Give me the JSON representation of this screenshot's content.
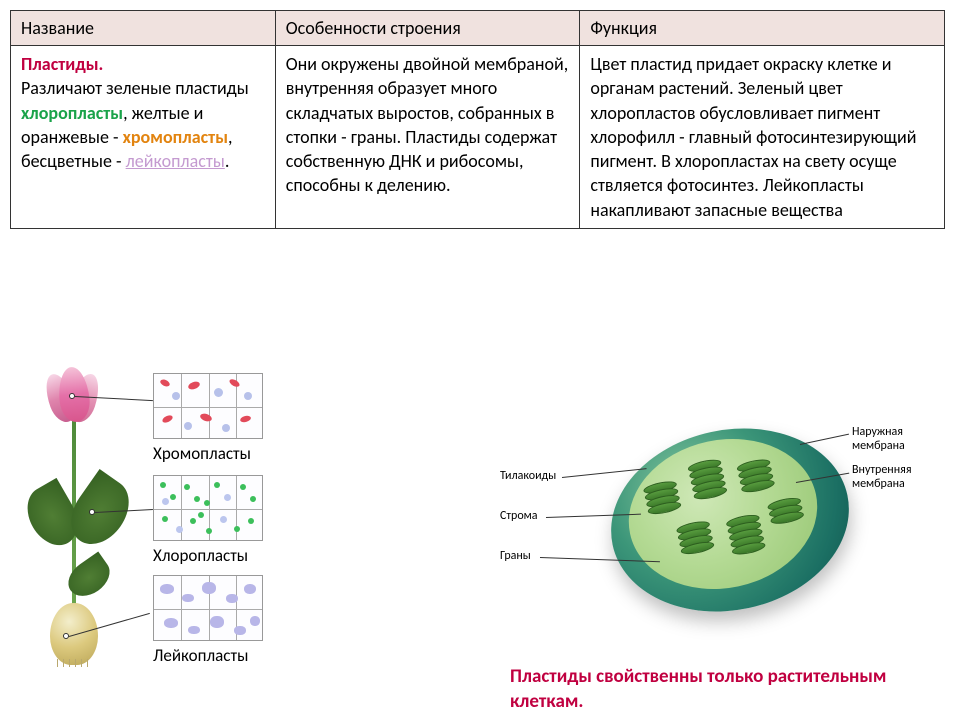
{
  "table": {
    "headers": [
      "Название",
      "Особенности строения",
      "Функция"
    ],
    "col1_parts": {
      "plastidy": "Пластиды.",
      "line2a": "Различают зеленые",
      "line2b": "пластиды ",
      "chloroplasts": "хлоропласты",
      "line3": ", желтые и оранжевые - ",
      "chromoplasts": "хромопласты",
      "line4": ", бесцветные - ",
      "leucoplasts": "лейкопласты",
      "period": "."
    },
    "col2": "Они окружены двойной мембраной, внутренняя образует много складчатых выростов, собранных в стопки - граны. Пластиды содержат собственную ДНК и рибосомы,  способны к делению.",
    "col3": "Цвет пластид придает окраску клетке и органам растений. Зеленый цвет хлоропластов обусловливает пигмент хлорофилл - главный фотосинтезирующий пигмент. В хлоропластах на свету осуще ствляется фотосинтез. Лейкопласты накапливают запасные вещества"
  },
  "plant_labels": {
    "chromoplasts": "Хромопласты",
    "chloroplasts": "Хлоропласты",
    "leucoplasts": "Лейкопласты"
  },
  "chloro_labels": {
    "thylakoids": "Тилакоиды",
    "stroma": "Строма",
    "grana": "Граны",
    "outer_membrane": "Наружная мембрана",
    "inner_membrane": "Внутренняя мембрана"
  },
  "footer": "Пластиды  свойственны только растительным клеткам.",
  "colors": {
    "header_bg": "#f0e2df",
    "plastidy": "#c00040",
    "chloroplasts": "#1aa34a",
    "chromoplasts": "#e28410",
    "leucoplasts": "#c49ad0",
    "footer": "#c00040",
    "chromo_red": "#e24a5a",
    "chromo_blue": "#b7c1ea",
    "chloro_green": "#3cbf5b",
    "chloro_bluebg": "#bcc6ee",
    "leuco_shape": "#b8b6e8"
  }
}
